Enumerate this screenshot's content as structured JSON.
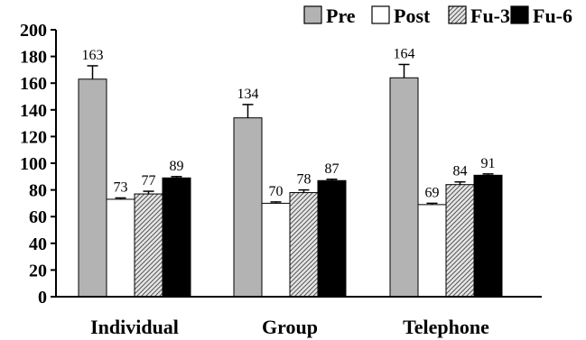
{
  "chart_data": {
    "type": "bar",
    "categories": [
      "Individual",
      "Group",
      "Telephone"
    ],
    "series": [
      {
        "name": "Pre",
        "values": [
          163,
          134,
          164
        ],
        "errors": [
          10,
          10,
          10
        ],
        "color": "#b3b3b3",
        "pattern": "solid"
      },
      {
        "name": "Post",
        "values": [
          73,
          70,
          69
        ],
        "errors": [
          1,
          1,
          1
        ],
        "color": "#ffffff",
        "pattern": "solid"
      },
      {
        "name": "Fu-3",
        "values": [
          77,
          78,
          84
        ],
        "errors": [
          2,
          2,
          2
        ],
        "color": "#d9d9d9",
        "pattern": "hatch"
      },
      {
        "name": "Fu-6",
        "values": [
          89,
          87,
          91
        ],
        "errors": [
          1,
          1,
          1
        ],
        "color": "#000000",
        "pattern": "solid"
      }
    ],
    "data_labels": [
      [
        "163",
        "134",
        "164"
      ],
      [
        "73",
        "70",
        "69"
      ],
      [
        "77",
        "78",
        "84"
      ],
      [
        "89",
        "87",
        "91"
      ]
    ],
    "yticks": [
      "0",
      "20",
      "40",
      "60",
      "80",
      "100",
      "120",
      "140",
      "160",
      "180",
      "200"
    ],
    "ylim": [
      0,
      200
    ],
    "grid": false,
    "legend_position": "top-right"
  }
}
